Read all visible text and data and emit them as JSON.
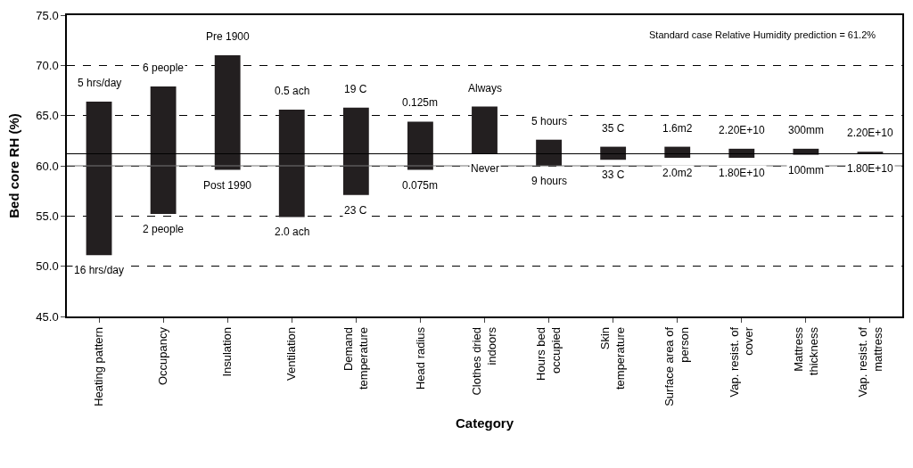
{
  "chart_data": {
    "type": "bar",
    "xlabel": "Category",
    "ylabel": "Bed core RH (%)",
    "categories": [
      "Heating pattern",
      "Occupancy",
      "Insulation",
      "Ventilation",
      "Demand temperature",
      "Head radius",
      "Clothes dried indoors",
      "Hours bed occupied",
      "Skin temperature",
      "Surface area of person",
      "Vap. resist. of cover",
      "Mattress thickness",
      "Vap. resist. of mattress"
    ],
    "series": [
      {
        "color": "#231f20",
        "values": [
          15.3,
          12.7,
          11.4,
          10.7,
          8.7,
          4.8,
          4.7,
          2.6,
          1.3,
          1.1,
          0.9,
          0.6,
          0.2
        ],
        "base": [
          51.1,
          55.2,
          59.6,
          54.9,
          57.1,
          59.6,
          61.2,
          60.0,
          60.6,
          60.8,
          60.8,
          61.1,
          61.2
        ]
      }
    ],
    "ylim": [
      45,
      75
    ],
    "yticks": [
      {
        "value": 45,
        "label": "45.0"
      },
      {
        "value": 50,
        "label": "50.0"
      },
      {
        "value": 55,
        "label": "55.0"
      },
      {
        "value": 60,
        "label": "60.0"
      },
      {
        "value": 65,
        "label": "65.0"
      },
      {
        "value": 70,
        "label": "70.0"
      },
      {
        "value": 75,
        "label": "75.0"
      }
    ],
    "grid": "y",
    "ref_lines": [
      {
        "axis": "y",
        "value": 60.0,
        "label": null,
        "color": "#777777",
        "line_style": "solid"
      },
      {
        "axis": "y",
        "value": 61.2,
        "label": null,
        "color": "#000000",
        "line_style": "solid"
      }
    ],
    "annotations": [
      "Standard case Relative Humidity prediction = 61.2%",
      {
        "text": "5 hrs/day",
        "x": "Heating pattern",
        "y": 66.4
      },
      {
        "text": "16 hrs/day",
        "x": "Heating pattern",
        "y": 51.1
      },
      {
        "text": "6 people",
        "x": "Occupancy",
        "y": 67.9
      },
      {
        "text": "2 people",
        "x": "Occupancy",
        "y": 55.2
      },
      {
        "text": "Pre 1900",
        "x": "Insulation",
        "y": 71.0
      },
      {
        "text": "Post 1990",
        "x": "Insulation",
        "y": 59.6
      },
      {
        "text": "0.5 ach",
        "x": "Ventilation",
        "y": 65.6
      },
      {
        "text": "2.0 ach",
        "x": "Ventilation",
        "y": 54.9
      },
      {
        "text": "19 C",
        "x": "Demand temperature",
        "y": 65.8
      },
      {
        "text": "23 C",
        "x": "Demand temperature",
        "y": 57.1
      },
      {
        "text": "0.125m",
        "x": "Head radius",
        "y": 64.4
      },
      {
        "text": "0.075m",
        "x": "Head radius",
        "y": 59.6
      },
      {
        "text": "Always",
        "x": "Clothes dried indoors",
        "y": 65.9
      },
      {
        "text": "Never",
        "x": "Clothes dried indoors",
        "y": 61.2
      },
      {
        "text": "5 hours",
        "x": "Hours bed occupied",
        "y": 62.6
      },
      {
        "text": "9 hours",
        "x": "Hours bed occupied",
        "y": 60.0
      },
      {
        "text": "35 C",
        "x": "Skin temperature",
        "y": 61.9
      },
      {
        "text": "33 C",
        "x": "Skin temperature",
        "y": 60.6
      },
      {
        "text": "1.6m2",
        "x": "Surface area of person",
        "y": 61.9
      },
      {
        "text": "2.0m2",
        "x": "Surface area of person",
        "y": 60.8
      },
      {
        "text": "2.20E+10",
        "x": "Vap. resist. of cover",
        "y": 61.7
      },
      {
        "text": "1.80E+10",
        "x": "Vap. resist. of cover",
        "y": 60.8
      },
      {
        "text": "300mm",
        "x": "Mattress thickness",
        "y": 61.7
      },
      {
        "text": "100mm",
        "x": "Mattress thickness",
        "y": 61.1
      },
      {
        "text": "2.20E+10",
        "x": "Vap. resist. of mattress",
        "y": 61.4
      },
      {
        "text": "1.80E+10",
        "x": "Vap. resist. of mattress",
        "y": 61.2
      }
    ]
  }
}
